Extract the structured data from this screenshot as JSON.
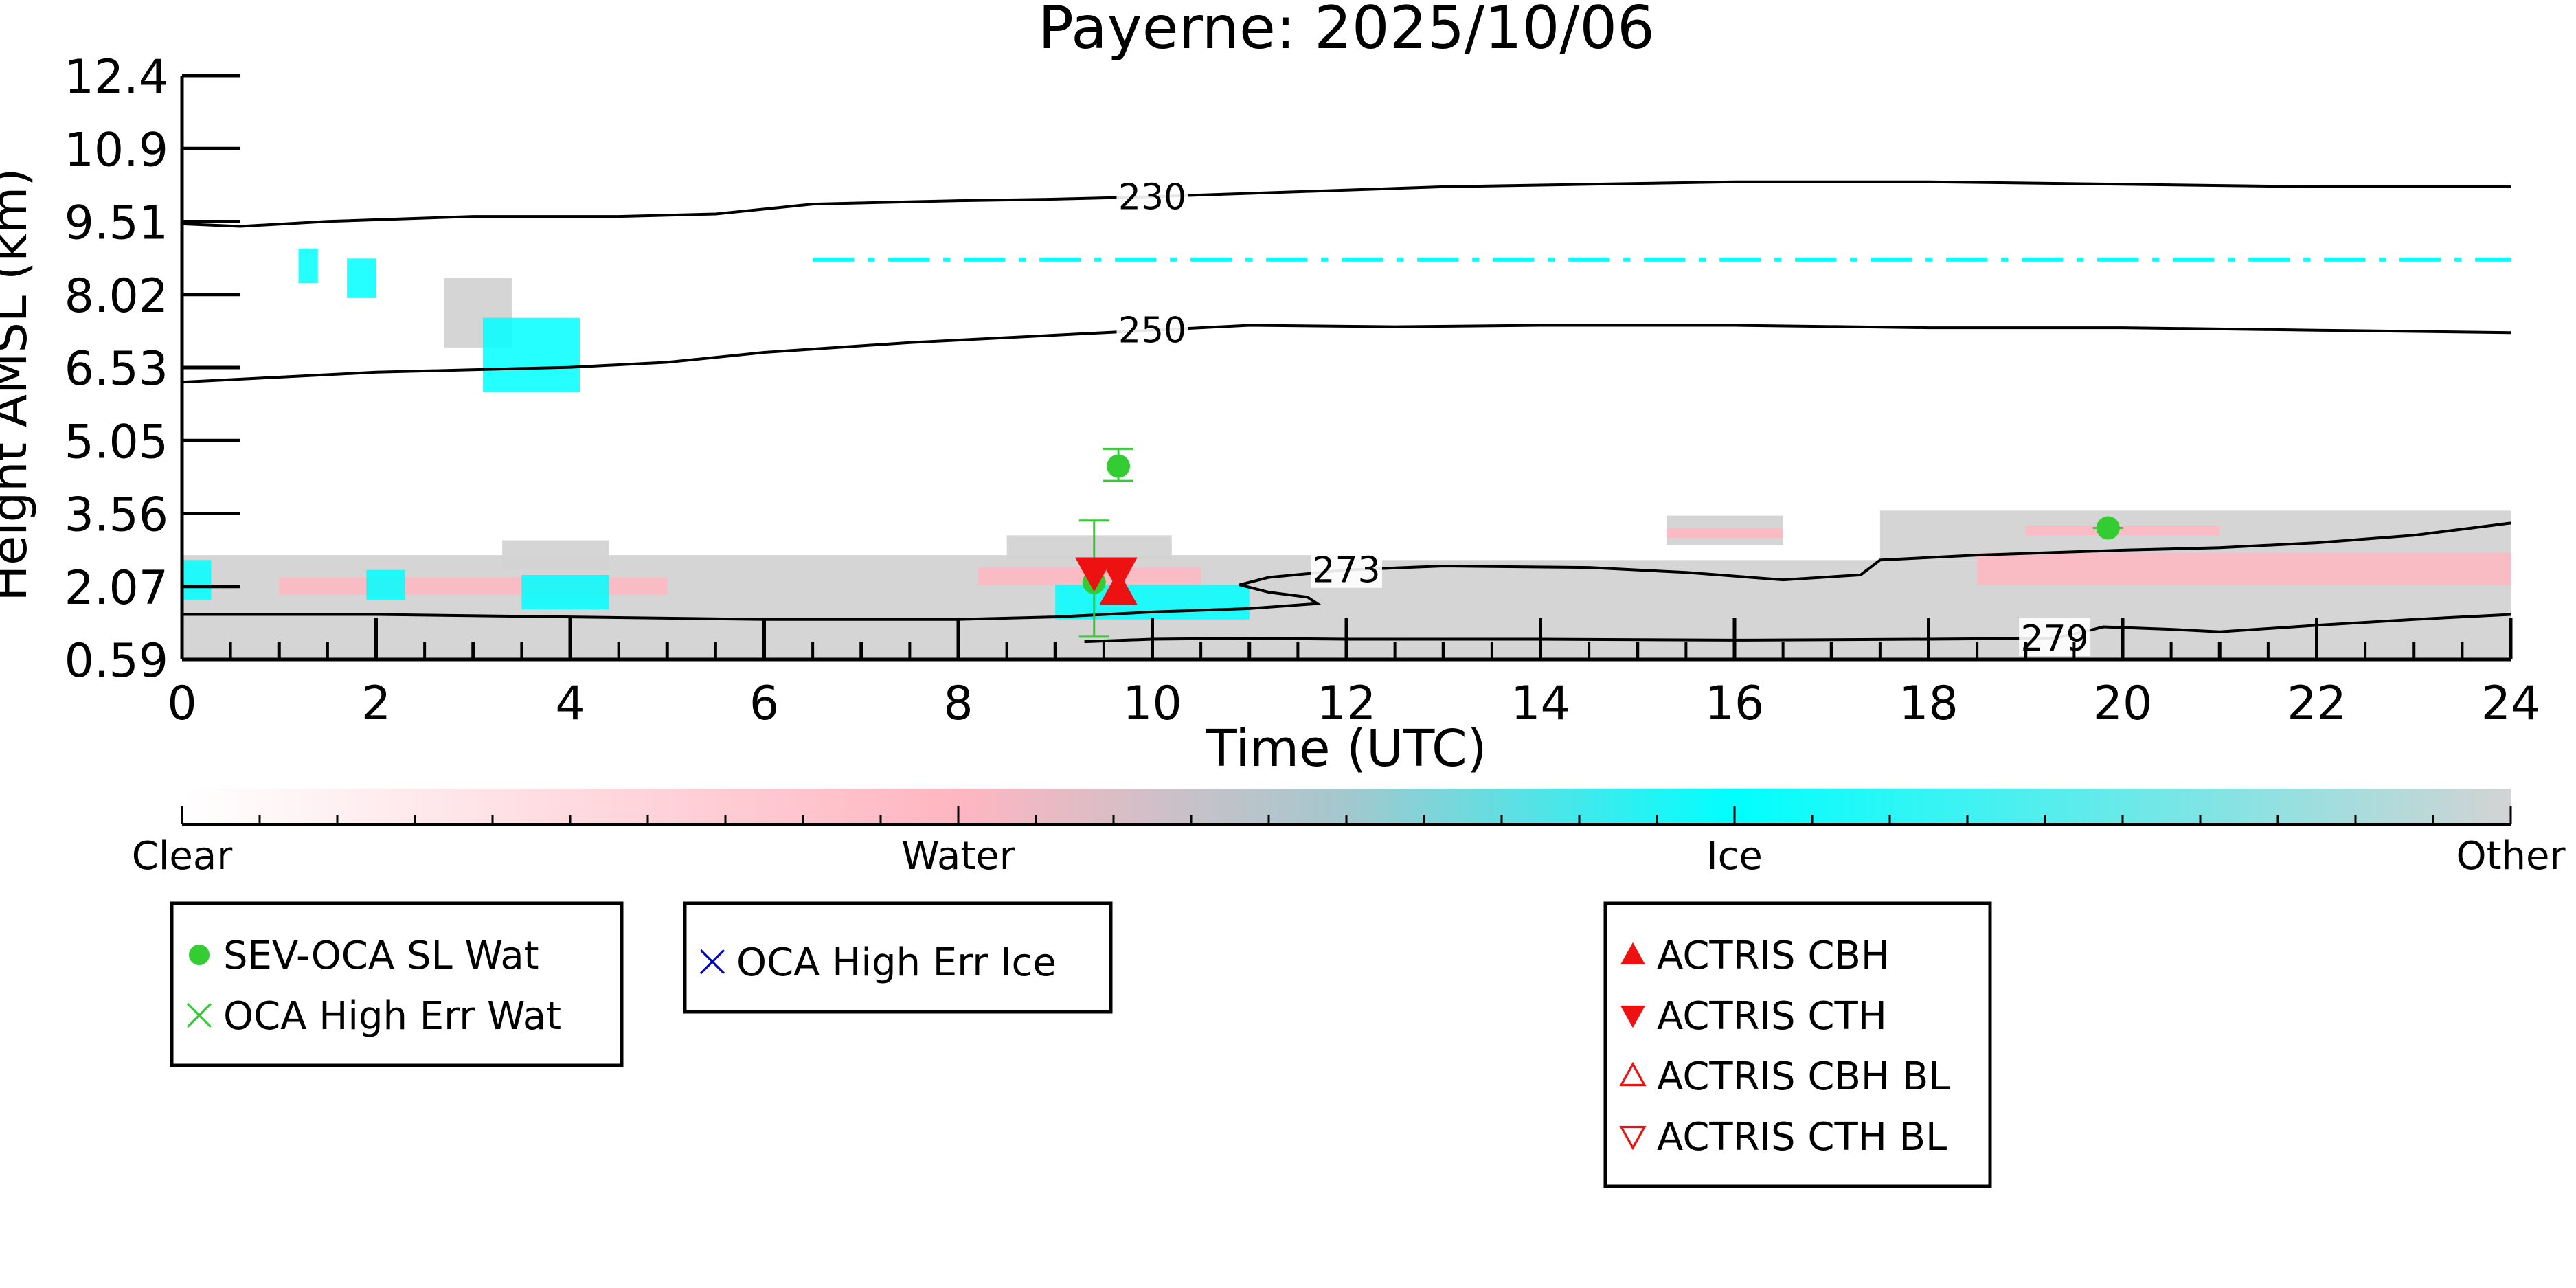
{
  "chart_data": {
    "type": "heatmap",
    "title": "Payerne: 2025/10/06",
    "xlabel": "Time (UTC)",
    "ylabel": "Height AMSL (km)",
    "xlim": [
      0,
      24
    ],
    "ylim": [
      0.59,
      12.4
    ],
    "x_ticks": [
      "0",
      "2",
      "4",
      "6",
      "8",
      "10",
      "12",
      "14",
      "16",
      "18",
      "20",
      "22",
      "24"
    ],
    "y_ticks": [
      "0.59",
      "2.07",
      "3.56",
      "5.05",
      "6.53",
      "8.02",
      "9.51",
      "10.9",
      "12.4"
    ],
    "colorbar": {
      "labels": [
        "Clear",
        "Water",
        "Ice",
        "Other"
      ],
      "colors": [
        "#ffffff",
        "#ffb6c1",
        "#00ffff",
        "#d3d3d3"
      ]
    },
    "temperature_contours": [
      {
        "label": "230",
        "points": [
          [
            0,
            9.4
          ],
          [
            0.6,
            9.35
          ],
          [
            1.5,
            9.45
          ],
          [
            3,
            9.55
          ],
          [
            4.5,
            9.55
          ],
          [
            5.5,
            9.6
          ],
          [
            6.5,
            9.8
          ],
          [
            8,
            9.87
          ],
          [
            9,
            9.9
          ],
          [
            10,
            9.95
          ],
          [
            11.5,
            10.05
          ],
          [
            13,
            10.15
          ],
          [
            14.5,
            10.2
          ],
          [
            16,
            10.25
          ],
          [
            18,
            10.25
          ],
          [
            20,
            10.2
          ],
          [
            22,
            10.15
          ],
          [
            24,
            10.15
          ]
        ]
      },
      {
        "label": "250",
        "points": [
          [
            0,
            6.2
          ],
          [
            1,
            6.3
          ],
          [
            2,
            6.4
          ],
          [
            4,
            6.5
          ],
          [
            5,
            6.6
          ],
          [
            6,
            6.8
          ],
          [
            7.5,
            7.0
          ],
          [
            9,
            7.15
          ],
          [
            10,
            7.25
          ],
          [
            11,
            7.35
          ],
          [
            12.5,
            7.32
          ],
          [
            14,
            7.35
          ],
          [
            16,
            7.35
          ],
          [
            18,
            7.3
          ],
          [
            20,
            7.3
          ],
          [
            22,
            7.25
          ],
          [
            24,
            7.2
          ]
        ]
      },
      {
        "label": "273",
        "points": [
          [
            0,
            1.5
          ],
          [
            2,
            1.5
          ],
          [
            4,
            1.45
          ],
          [
            6,
            1.4
          ],
          [
            8,
            1.4
          ],
          [
            9,
            1.45
          ],
          [
            10,
            1.55
          ],
          [
            11,
            1.62
          ],
          [
            11.7,
            1.72
          ],
          [
            11.6,
            1.85
          ],
          [
            11.2,
            1.95
          ],
          [
            10.9,
            2.1
          ],
          [
            11.2,
            2.25
          ],
          [
            12,
            2.4
          ],
          [
            13,
            2.48
          ],
          [
            14.5,
            2.45
          ],
          [
            15.5,
            2.35
          ],
          [
            16.5,
            2.2
          ],
          [
            17.3,
            2.3
          ],
          [
            17.5,
            2.6
          ],
          [
            18.5,
            2.7
          ],
          [
            20,
            2.8
          ],
          [
            21,
            2.85
          ],
          [
            22,
            2.95
          ],
          [
            23,
            3.1
          ],
          [
            24,
            3.35
          ]
        ]
      },
      {
        "label": "279",
        "points": [
          [
            9.3,
            0.95
          ],
          [
            10,
            1.0
          ],
          [
            11,
            1.02
          ],
          [
            12,
            1.0
          ],
          [
            14,
            1.0
          ],
          [
            16,
            0.98
          ],
          [
            18,
            1.0
          ],
          [
            19.3,
            1.02
          ],
          [
            19.6,
            1.15
          ],
          [
            19.8,
            1.25
          ],
          [
            20.5,
            1.2
          ],
          [
            21,
            1.15
          ],
          [
            22,
            1.28
          ],
          [
            23,
            1.4
          ],
          [
            24,
            1.5
          ]
        ]
      }
    ],
    "series": [
      {
        "name": "SEV-OCA SL Wat",
        "color": "#33cc33",
        "marker": "circle",
        "points": [
          {
            "x": 9.4,
            "y": 2.15,
            "err_low": 1.05,
            "err_high": 3.4
          },
          {
            "x": 9.65,
            "y": 4.5,
            "err_low": 4.2,
            "err_high": 4.85
          },
          {
            "x": 19.85,
            "y": 3.25,
            "err_low": 3.25,
            "err_high": 3.25
          }
        ]
      },
      {
        "name": "OCA High Err Wat",
        "color": "#33cc33",
        "marker": "x",
        "points": []
      },
      {
        "name": "OCA High Err Ice",
        "color": "#0000cc",
        "marker": "x",
        "points": []
      },
      {
        "name": "ACTRIS CBH",
        "color": "#ee1111",
        "marker": "triangle-up",
        "points": [
          {
            "x": 9.65,
            "y": 2.0
          }
        ]
      },
      {
        "name": "ACTRIS CTH",
        "color": "#ee1111",
        "marker": "triangle-down",
        "points": [
          {
            "x": 9.4,
            "y": 2.35
          },
          {
            "x": 9.65,
            "y": 2.35
          }
        ]
      },
      {
        "name": "ACTRIS CBH BL",
        "color": "#ee1111",
        "marker": "triangle-up-open",
        "points": []
      },
      {
        "name": "ACTRIS CTH BL",
        "color": "#ee1111",
        "marker": "triangle-down-open",
        "points": []
      }
    ],
    "cloud_regions": [
      {
        "class": "Other",
        "x0": 0,
        "x1": 12,
        "y0": 0.59,
        "y1": 2.7
      },
      {
        "class": "Other",
        "x0": 12,
        "x1": 24,
        "y0": 0.59,
        "y1": 2.6
      },
      {
        "class": "Other",
        "x0": 17.5,
        "x1": 24,
        "y0": 2.6,
        "y1": 3.6
      },
      {
        "class": "Other",
        "x0": 15.3,
        "x1": 16.5,
        "y0": 2.9,
        "y1": 3.5
      },
      {
        "class": "Other",
        "x0": 3.3,
        "x1": 4.4,
        "y0": 2.4,
        "y1": 3.0
      },
      {
        "class": "Other",
        "x0": 8.5,
        "x1": 10.2,
        "y0": 2.6,
        "y1": 3.1
      },
      {
        "class": "Water",
        "x0": 1.0,
        "x1": 5.0,
        "y0": 1.9,
        "y1": 2.25
      },
      {
        "class": "Water",
        "x0": 8.2,
        "x1": 10.5,
        "y0": 2.1,
        "y1": 2.45
      },
      {
        "class": "Water",
        "x0": 18.5,
        "x1": 24,
        "y0": 2.1,
        "y1": 2.75
      },
      {
        "class": "Water",
        "x0": 15.3,
        "x1": 16.5,
        "y0": 3.05,
        "y1": 3.25
      },
      {
        "class": "Water",
        "x0": 19.0,
        "x1": 21.0,
        "y0": 3.1,
        "y1": 3.3
      },
      {
        "class": "Ice",
        "x0": 0,
        "x1": 0.3,
        "y0": 1.8,
        "y1": 2.6
      },
      {
        "class": "Ice",
        "x0": 1.9,
        "x1": 2.3,
        "y0": 1.8,
        "y1": 2.4
      },
      {
        "class": "Ice",
        "x0": 3.5,
        "x1": 4.4,
        "y0": 1.6,
        "y1": 2.3
      },
      {
        "class": "Ice",
        "x0": 9.0,
        "x1": 11.0,
        "y0": 1.4,
        "y1": 2.1
      },
      {
        "class": "Ice",
        "x0": 1.2,
        "x1": 1.4,
        "y0": 8.2,
        "y1": 8.9
      },
      {
        "class": "Ice",
        "x0": 1.7,
        "x1": 2.0,
        "y0": 7.9,
        "y1": 8.7
      },
      {
        "class": "Other",
        "x0": 2.7,
        "x1": 3.4,
        "y0": 6.9,
        "y1": 8.3
      },
      {
        "class": "Ice",
        "x0": 3.1,
        "x1": 4.1,
        "y0": 6.0,
        "y1": 7.5
      },
      {
        "class": "Ice",
        "x0": 6.5,
        "x1": 24,
        "y0": 8.64,
        "y1": 8.72,
        "dashed": true
      }
    ]
  }
}
